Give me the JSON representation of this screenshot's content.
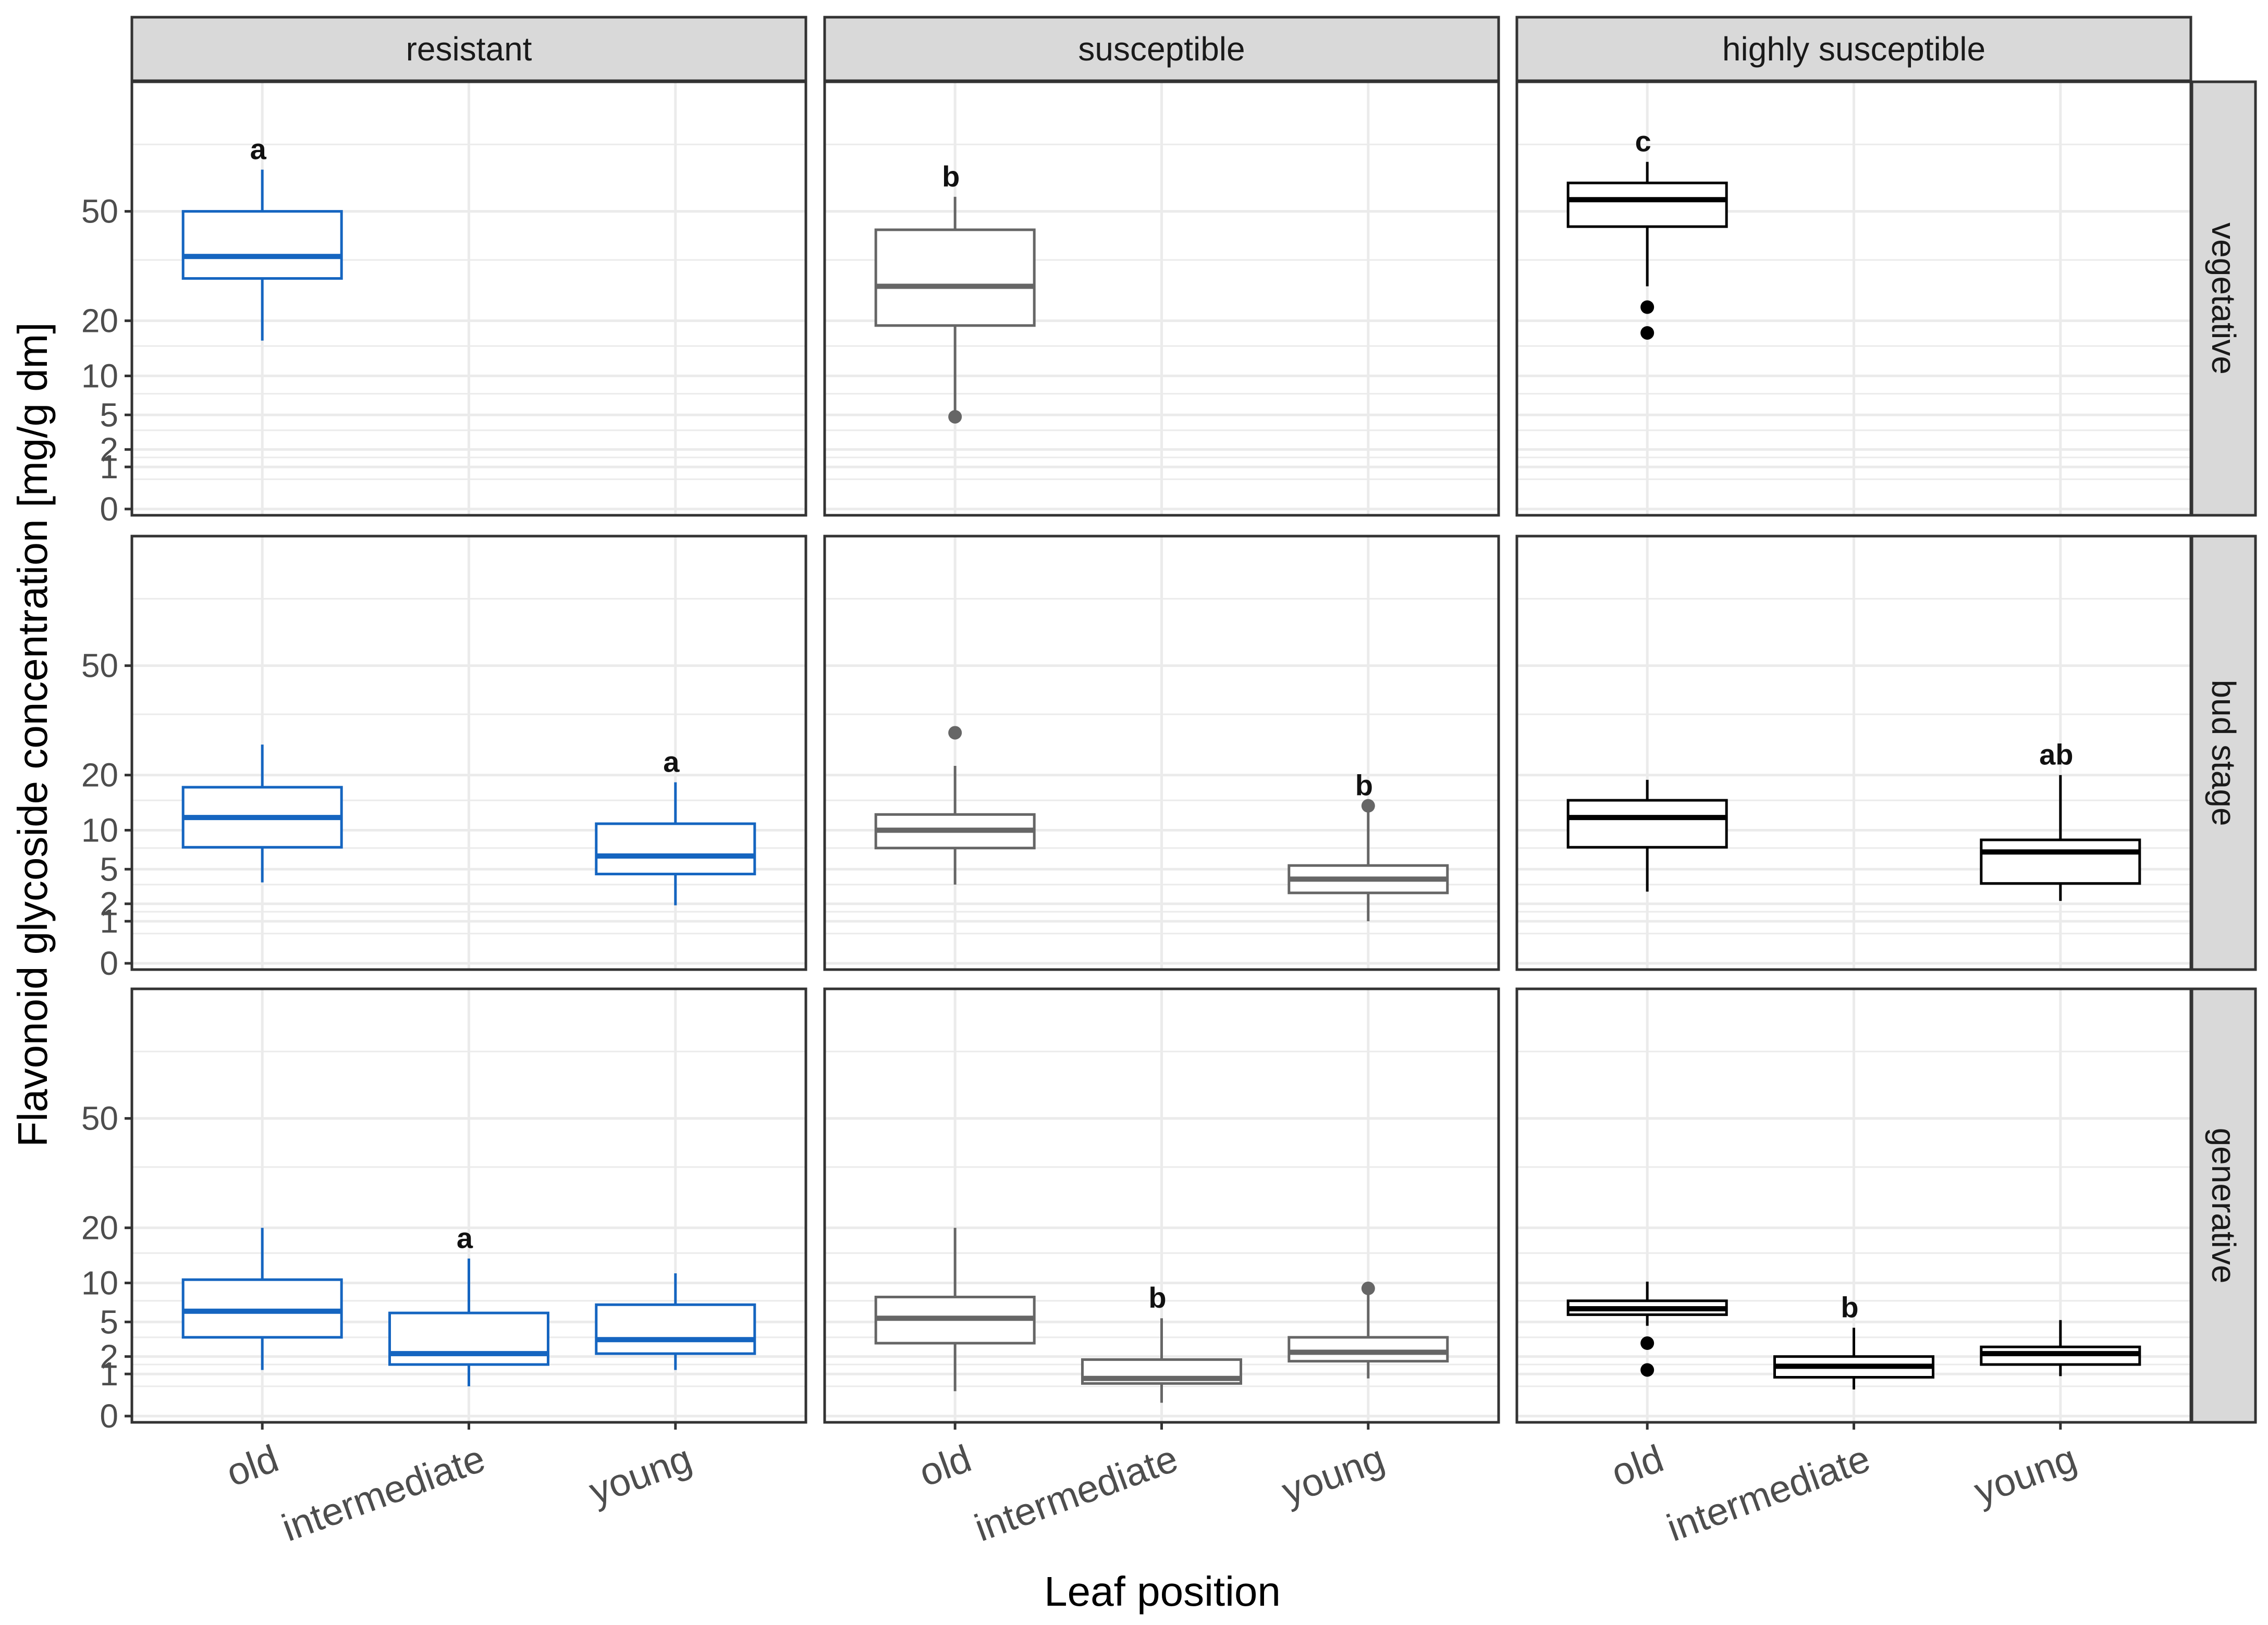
{
  "chart_data": {
    "type": "boxplot",
    "xlabel": "Leaf position",
    "ylabel": "Flavonoid glycoside concentration [mg/g dm]",
    "x_categories": [
      "old",
      "intermediate",
      "young"
    ],
    "column_facets": [
      "resistant",
      "susceptible",
      "highly susceptible"
    ],
    "row_facets": [
      "vegetative",
      "bud stage",
      "generative"
    ],
    "y_scale": "sqrt",
    "y_ticks": [
      0,
      1,
      2,
      5,
      10,
      20,
      50
    ],
    "ylim": [
      0,
      100
    ],
    "colors": {
      "resistant": "#1565C0",
      "susceptible": "#666666",
      "highly susceptible": "#000000",
      "strip_fill": "#d9d9d9",
      "grid": "#ebebeb",
      "panel_border": "#333333"
    },
    "panels": [
      {
        "row": "vegetative",
        "column": "resistant",
        "boxes": [
          {
            "x": "old",
            "whisker_low": 16,
            "q1": 30,
            "median": 36,
            "q3": 50,
            "whisker_high": 65,
            "outliers": [],
            "label": "a"
          }
        ]
      },
      {
        "row": "vegetative",
        "column": "susceptible",
        "boxes": [
          {
            "x": "old",
            "whisker_low": 5,
            "q1": 19,
            "median": 28,
            "q3": 44,
            "whisker_high": 55,
            "outliers": [
              4.8
            ],
            "label": "b"
          }
        ]
      },
      {
        "row": "vegetative",
        "column": "highly susceptible",
        "boxes": [
          {
            "x": "old",
            "whisker_low": 28,
            "q1": 45,
            "median": 54,
            "q3": 60,
            "whisker_high": 68,
            "outliers": [
              23,
              17.5
            ],
            "label": "c"
          }
        ]
      },
      {
        "row": "bud stage",
        "column": "resistant",
        "boxes": [
          {
            "x": "old",
            "whisker_low": 3.7,
            "q1": 7.6,
            "median": 12,
            "q3": 17.5,
            "whisker_high": 27,
            "outliers": [],
            "label": ""
          },
          {
            "x": "young",
            "whisker_low": 1.9,
            "q1": 4.5,
            "median": 6.5,
            "q3": 11,
            "whisker_high": 18.5,
            "outliers": [],
            "label": "a"
          }
        ]
      },
      {
        "row": "bud stage",
        "column": "susceptible",
        "boxes": [
          {
            "x": "old",
            "whisker_low": 3.5,
            "q1": 7.5,
            "median": 10,
            "q3": 12.5,
            "whisker_high": 22,
            "outliers": [
              30
            ],
            "label": ""
          },
          {
            "x": "young",
            "whisker_low": 1,
            "q1": 2.8,
            "median": 4,
            "q3": 5.4,
            "whisker_high": 13,
            "outliers": [
              14
            ],
            "label": "b"
          }
        ]
      },
      {
        "row": "bud stage",
        "column": "highly susceptible",
        "boxes": [
          {
            "x": "old",
            "whisker_low": 2.9,
            "q1": 7.6,
            "median": 12,
            "q3": 15,
            "whisker_high": 19,
            "outliers": [],
            "label": ""
          },
          {
            "x": "young",
            "whisker_low": 2.2,
            "q1": 3.6,
            "median": 7,
            "q3": 8.6,
            "whisker_high": 20,
            "outliers": [],
            "label": "ab"
          }
        ]
      },
      {
        "row": "generative",
        "column": "resistant",
        "boxes": [
          {
            "x": "old",
            "whisker_low": 1.2,
            "q1": 3.5,
            "median": 6.2,
            "q3": 10.5,
            "whisker_high": 20,
            "outliers": [],
            "label": ""
          },
          {
            "x": "intermediate",
            "whisker_low": 0.5,
            "q1": 1.5,
            "median": 2.2,
            "q3": 6,
            "whisker_high": 14,
            "outliers": [],
            "label": "a"
          },
          {
            "x": "young",
            "whisker_low": 1.2,
            "q1": 2.2,
            "median": 3.3,
            "q3": 7,
            "whisker_high": 11.5,
            "outliers": [],
            "label": ""
          }
        ]
      },
      {
        "row": "generative",
        "column": "susceptible",
        "boxes": [
          {
            "x": "old",
            "whisker_low": 0.35,
            "q1": 3,
            "median": 5.4,
            "q3": 8,
            "whisker_high": 20,
            "outliers": [],
            "label": ""
          },
          {
            "x": "intermediate",
            "whisker_low": 0.1,
            "q1": 0.6,
            "median": 0.8,
            "q3": 1.8,
            "whisker_high": 5.4,
            "outliers": [],
            "label": "b"
          },
          {
            "x": "young",
            "whisker_low": 0.8,
            "q1": 1.7,
            "median": 2.3,
            "q3": 3.5,
            "whisker_high": 8.5,
            "outliers": [
              9.2
            ],
            "label": ""
          }
        ]
      },
      {
        "row": "generative",
        "column": "highly susceptible",
        "boxes": [
          {
            "x": "old",
            "whisker_low": 4.6,
            "q1": 5.8,
            "median": 6.5,
            "q3": 7.5,
            "whisker_high": 10.2,
            "outliers": [
              3,
              1.2
            ],
            "label": ""
          },
          {
            "x": "intermediate",
            "whisker_low": 0.4,
            "q1": 0.85,
            "median": 1.4,
            "q3": 2,
            "whisker_high": 4.4,
            "outliers": [],
            "label": "b"
          },
          {
            "x": "young",
            "whisker_low": 0.9,
            "q1": 1.5,
            "median": 2.2,
            "q3": 2.7,
            "whisker_high": 5.2,
            "outliers": [],
            "label": ""
          }
        ]
      }
    ]
  }
}
